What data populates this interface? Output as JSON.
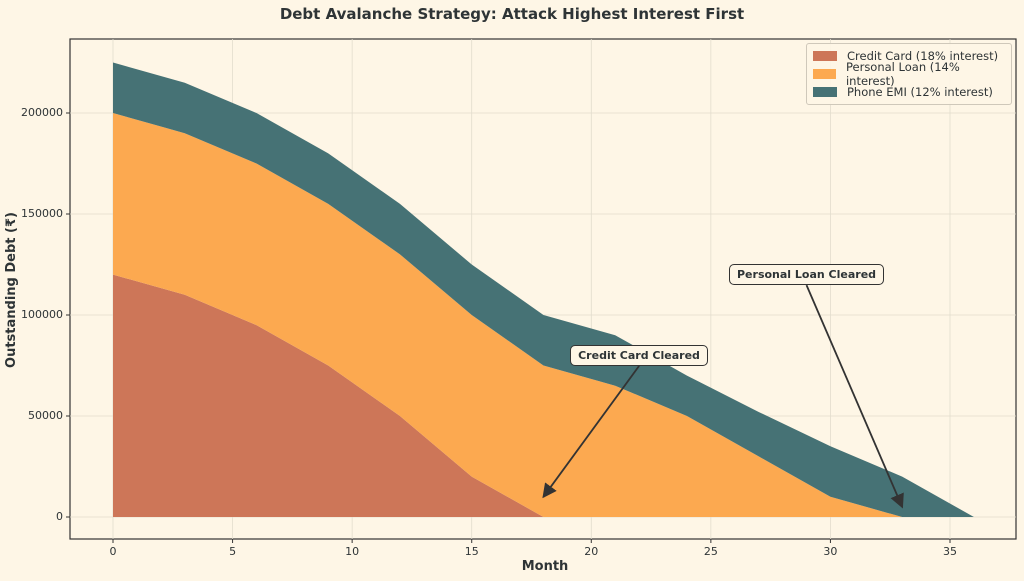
{
  "chart_data": {
    "type": "area",
    "stacked": true,
    "title": "Debt Avalanche Strategy: Attack Highest Interest First",
    "xlabel": "Month",
    "ylabel": "Outstanding Debt (₹)",
    "x": [
      0,
      3,
      6,
      9,
      12,
      15,
      18,
      21,
      24,
      27,
      30,
      33,
      36
    ],
    "series": [
      {
        "name": "Credit Card (18% interest)",
        "color": "#cd7658",
        "values": [
          120000,
          110000,
          95000,
          75000,
          50000,
          20000,
          0,
          0,
          0,
          0,
          0,
          0,
          0
        ]
      },
      {
        "name": "Personal Loan (14% interest)",
        "color": "#fca950",
        "values": [
          80000,
          80000,
          80000,
          80000,
          80000,
          80000,
          75000,
          65000,
          50000,
          30000,
          10000,
          0,
          0
        ]
      },
      {
        "name": "Phone EMI (12% interest)",
        "color": "#467275",
        "values": [
          25000,
          25000,
          25000,
          25000,
          25000,
          25000,
          25000,
          25000,
          20000,
          22000,
          25000,
          20000,
          0
        ]
      }
    ],
    "xticks": [
      0,
      5,
      10,
      15,
      20,
      25,
      30,
      35
    ],
    "yticks": [
      0,
      50000,
      100000,
      150000,
      200000
    ],
    "xlim": [
      -1.8,
      37.8
    ],
    "ylim": [
      -11250,
      236250
    ],
    "grid": true,
    "legend_position": "upper right",
    "annotations": [
      {
        "text": "Credit Card Cleared",
        "xy": [
          18,
          10000
        ],
        "xytext": [
          22,
          80000
        ]
      },
      {
        "text": "Personal Loan Cleared",
        "xy": [
          33,
          5000
        ],
        "xytext": [
          29,
          120000
        ]
      }
    ]
  }
}
